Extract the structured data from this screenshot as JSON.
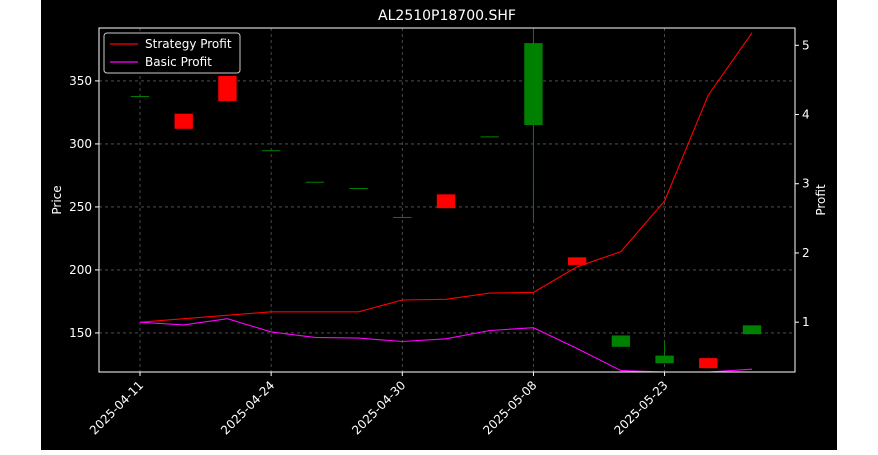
{
  "chart_data": {
    "type": "candlestick",
    "title": "AL2510P18700.SHF",
    "ylabel_left": "Price",
    "ylabel_right": "Profit",
    "xlabel": "",
    "grid": true,
    "legend_position": "top-left",
    "background_color": "#000000",
    "x_tick_labels": [
      "2025-04-11",
      "2025-04-24",
      "2025-04-30",
      "2025-05-08",
      "2025-05-23"
    ],
    "x_tick_indices": [
      0,
      3,
      6,
      9,
      12
    ],
    "ylim_left": [
      119,
      392
    ],
    "y_ticks_left": [
      150,
      200,
      250,
      300,
      350
    ],
    "ylim_right": [
      0.28,
      5.25
    ],
    "y_ticks_right": [
      1,
      2,
      3,
      4,
      5
    ],
    "candles": [
      {
        "open": 338,
        "close": 338,
        "high": 338,
        "low": 338
      },
      {
        "open": 324,
        "close": 312,
        "high": 324,
        "low": 312
      },
      {
        "open": 354,
        "close": 334,
        "high": 354,
        "low": 334
      },
      {
        "open": 295,
        "close": 295,
        "high": 295,
        "low": 295
      },
      {
        "open": 270,
        "close": 270,
        "high": 270,
        "low": 270
      },
      {
        "open": 265,
        "close": 265,
        "high": 265,
        "low": 265
      },
      {
        "open": 242,
        "close": 242,
        "high": 242,
        "low": 242
      },
      {
        "open": 260,
        "close": 249,
        "high": 260,
        "low": 249
      },
      {
        "open": 306,
        "close": 306,
        "high": 306,
        "low": 306
      },
      {
        "open": 315,
        "close": 380,
        "high": 391,
        "low": 239
      },
      {
        "open": 210,
        "close": 204,
        "high": 210,
        "low": 204
      },
      {
        "open": 139,
        "close": 148,
        "high": 148,
        "low": 139
      },
      {
        "open": 126,
        "close": 132,
        "high": 143,
        "low": 126
      },
      {
        "open": 130,
        "close": 122,
        "high": 130,
        "low": 122
      },
      {
        "open": 149,
        "close": 156,
        "high": 156,
        "low": 149
      }
    ],
    "up_color": "#008000",
    "down_color": "#ff0000",
    "series": [
      {
        "name": "Strategy Profit",
        "color": "#ff0000",
        "x": [
          0,
          3,
          5,
          6,
          7,
          8,
          9,
          10,
          11,
          12,
          13,
          14
        ],
        "values": [
          1.0,
          1.15,
          1.15,
          1.32,
          1.33,
          1.42,
          1.43,
          1.8,
          2.02,
          2.75,
          4.28,
          5.18
        ]
      },
      {
        "name": "Basic Profit",
        "color": "#ff00ff",
        "x": [
          0,
          1,
          2,
          3,
          4,
          5,
          6,
          7,
          8,
          9,
          10,
          11,
          12,
          13,
          14
        ],
        "values": [
          1.0,
          0.96,
          1.05,
          0.86,
          0.78,
          0.77,
          0.72,
          0.76,
          0.88,
          0.92,
          0.62,
          0.3,
          0.28,
          0.28,
          0.32
        ]
      }
    ]
  }
}
